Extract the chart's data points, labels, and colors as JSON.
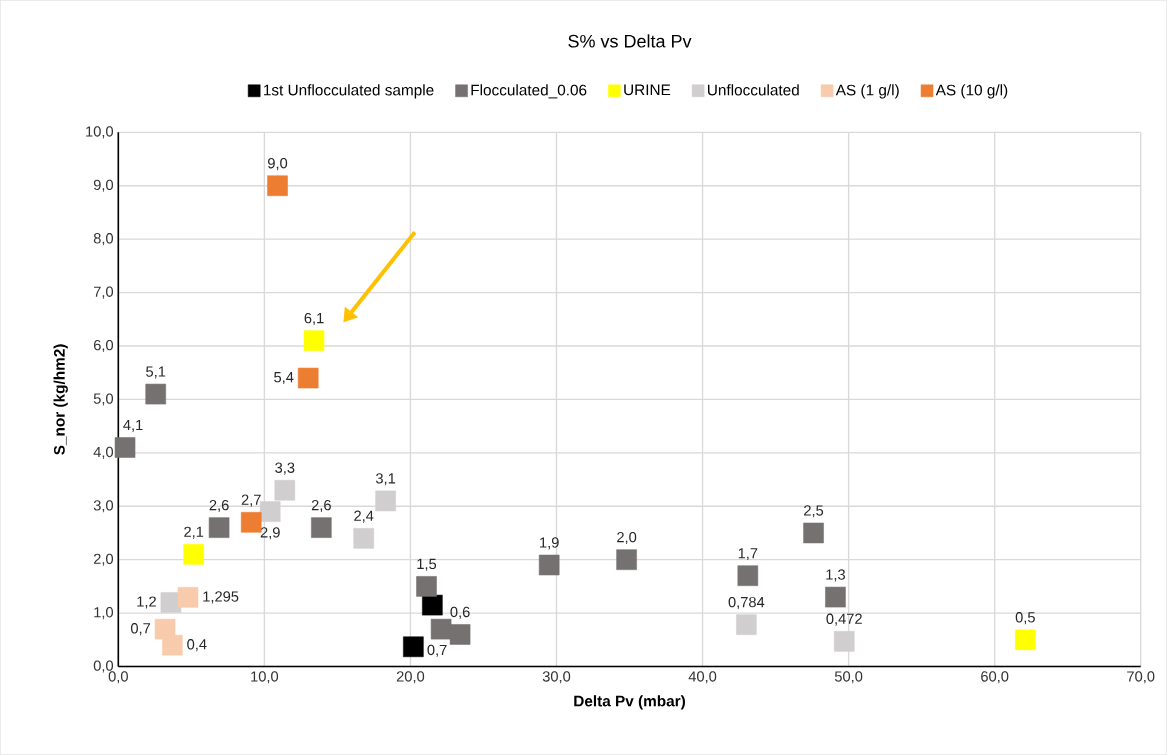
{
  "chart_data": {
    "type": "scatter",
    "title": "S% vs Delta Pv",
    "xlabel": "Delta Pv (mbar)",
    "ylabel": "S_nor (kg/hm2)",
    "xlim": [
      0,
      70
    ],
    "ylim": [
      0,
      10
    ],
    "xticks": [
      {
        "value": 0,
        "label": "0,0"
      },
      {
        "value": 10,
        "label": "10,0"
      },
      {
        "value": 20,
        "label": "20,0"
      },
      {
        "value": 30,
        "label": "30,0"
      },
      {
        "value": 40,
        "label": "40,0"
      },
      {
        "value": 50,
        "label": "50,0"
      },
      {
        "value": 60,
        "label": "60,0"
      },
      {
        "value": 70,
        "label": "70,0"
      }
    ],
    "yticks": [
      {
        "value": 0,
        "label": "0,0"
      },
      {
        "value": 1,
        "label": "1,0"
      },
      {
        "value": 2,
        "label": "2,0"
      },
      {
        "value": 3,
        "label": "3,0"
      },
      {
        "value": 4,
        "label": "4,0"
      },
      {
        "value": 5,
        "label": "5,0"
      },
      {
        "value": 6,
        "label": "6,0"
      },
      {
        "value": 7,
        "label": "7,0"
      },
      {
        "value": 8,
        "label": "8,0"
      },
      {
        "value": 9,
        "label": "9,0"
      },
      {
        "value": 10,
        "label": "10,0"
      }
    ],
    "grid": true,
    "legend": "top",
    "marker": "square",
    "series": [
      {
        "name": "1st Unflocculated sample",
        "color": "#000000",
        "x": [
          20.2,
          21.5
        ],
        "values": [
          0.37,
          1.15
        ],
        "value_labels": [
          null,
          null
        ]
      },
      {
        "name": "Flocculated_0.06",
        "color": "#767171",
        "x": [
          0.46,
          2.56,
          6.9,
          13.9,
          21.1,
          22.1,
          23.4,
          29.5,
          34.8,
          43.1,
          47.6,
          49.1
        ],
        "values": [
          4.1,
          5.1,
          2.6,
          2.6,
          1.5,
          0.7,
          0.6,
          1.9,
          2.0,
          1.7,
          2.5,
          1.3
        ],
        "value_labels": [
          "4,1",
          "5,1",
          "2,6",
          "2,6",
          "1,5",
          "0,7",
          "0,6",
          "1,9",
          "2,0",
          "1,7",
          "2,5",
          "1,3"
        ]
      },
      {
        "name": "URINE",
        "color": "#ffff00",
        "x": [
          5.16,
          13.4,
          62.1
        ],
        "values": [
          2.1,
          6.1,
          0.5
        ],
        "value_labels": [
          "2,1",
          "6,1",
          "0,5"
        ]
      },
      {
        "name": "Unflocculated",
        "color": "#d0cece",
        "x": [
          3.6,
          10.4,
          11.4,
          16.8,
          18.3,
          43.0,
          49.7
        ],
        "values": [
          1.2,
          2.9,
          3.3,
          2.4,
          3.1,
          0.784,
          0.472
        ],
        "value_labels": [
          "1,2",
          "2,9",
          "3,3",
          "2,4",
          "3,1",
          "0,784",
          "0,472"
        ]
      },
      {
        "name": "AS (1 g/l)",
        "color": "#f8cbad",
        "x": [
          3.2,
          3.7,
          4.77
        ],
        "values": [
          0.7,
          0.4,
          1.295
        ],
        "value_labels": [
          "0,7",
          "0,4",
          "1,295"
        ]
      },
      {
        "name": "AS (10 g/l)",
        "color": "#ed7d31",
        "x": [
          9.1,
          10.9,
          13.0
        ],
        "values": [
          2.7,
          9.0,
          5.4
        ],
        "value_labels": [
          "2,7",
          "9,0",
          "5,4"
        ]
      }
    ]
  }
}
